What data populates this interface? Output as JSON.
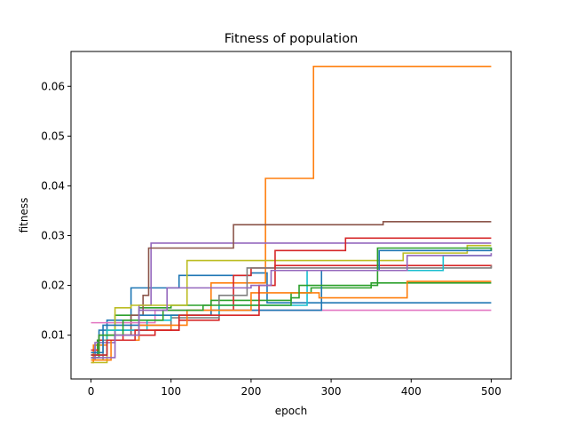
{
  "chart_data": {
    "type": "line",
    "step": true,
    "title": "Fitness of population",
    "xlabel": "epoch",
    "ylabel": "fitness",
    "xlim": [
      -25,
      525
    ],
    "ylim": [
      0.0012,
      0.067
    ],
    "xticks": [
      0,
      100,
      200,
      300,
      400,
      500
    ],
    "yticks": [
      0.01,
      0.02,
      0.03,
      0.04,
      0.05,
      0.06
    ],
    "ytick_labels": [
      "0.01",
      "0.02",
      "0.03",
      "0.04",
      "0.05",
      "0.06"
    ],
    "grid": false,
    "legend": false,
    "series": [
      {
        "color": "#1f77b4",
        "points": [
          [
            0,
            0.0055
          ],
          [
            5,
            0.008
          ],
          [
            10,
            0.011
          ],
          [
            20,
            0.013
          ],
          [
            50,
            0.0195
          ],
          [
            110,
            0.022
          ],
          [
            200,
            0.0225
          ],
          [
            220,
            0.0165
          ],
          [
            500,
            0.0165
          ]
        ]
      },
      {
        "color": "#ff7f0e",
        "points": [
          [
            0,
            0.0045
          ],
          [
            3,
            0.008
          ],
          [
            20,
            0.01
          ],
          [
            60,
            0.011
          ],
          [
            100,
            0.014
          ],
          [
            150,
            0.0205
          ],
          [
            218,
            0.0415
          ],
          [
            278,
            0.064
          ],
          [
            500,
            0.064
          ]
        ]
      },
      {
        "color": "#2ca02c",
        "points": [
          [
            0,
            0.006
          ],
          [
            8,
            0.009
          ],
          [
            30,
            0.014
          ],
          [
            60,
            0.0155
          ],
          [
            100,
            0.016
          ],
          [
            150,
            0.017
          ],
          [
            250,
            0.0185
          ],
          [
            275,
            0.0195
          ],
          [
            350,
            0.0205
          ],
          [
            500,
            0.0205
          ]
        ]
      },
      {
        "color": "#d62728",
        "points": [
          [
            0,
            0.007
          ],
          [
            10,
            0.009
          ],
          [
            40,
            0.01
          ],
          [
            80,
            0.011
          ],
          [
            110,
            0.013
          ],
          [
            160,
            0.015
          ],
          [
            178,
            0.022
          ],
          [
            200,
            0.0235
          ],
          [
            230,
            0.024
          ],
          [
            500,
            0.0235
          ]
        ]
      },
      {
        "color": "#9467bd",
        "points": [
          [
            0,
            0.005
          ],
          [
            5,
            0.0085
          ],
          [
            30,
            0.011
          ],
          [
            60,
            0.016
          ],
          [
            75,
            0.0285
          ],
          [
            180,
            0.0285
          ],
          [
            500,
            0.0285
          ]
        ]
      },
      {
        "color": "#8c564b",
        "points": [
          [
            0,
            0.0065
          ],
          [
            10,
            0.01
          ],
          [
            50,
            0.014
          ],
          [
            65,
            0.018
          ],
          [
            72,
            0.0275
          ],
          [
            178,
            0.0322
          ],
          [
            365,
            0.0328
          ],
          [
            500,
            0.0328
          ]
        ]
      },
      {
        "color": "#e377c2",
        "points": [
          [
            0,
            0.0125
          ],
          [
            80,
            0.015
          ],
          [
            500,
            0.015
          ]
        ]
      },
      {
        "color": "#7f7f7f",
        "points": [
          [
            0,
            0.005
          ],
          [
            15,
            0.009
          ],
          [
            60,
            0.012
          ],
          [
            100,
            0.0135
          ],
          [
            160,
            0.018
          ],
          [
            195,
            0.0235
          ],
          [
            500,
            0.024
          ]
        ]
      },
      {
        "color": "#bcbd22",
        "points": [
          [
            0,
            0.0045
          ],
          [
            20,
            0.011
          ],
          [
            30,
            0.0155
          ],
          [
            50,
            0.016
          ],
          [
            120,
            0.025
          ],
          [
            390,
            0.0265
          ],
          [
            470,
            0.028
          ],
          [
            500,
            0.028
          ]
        ]
      },
      {
        "color": "#17becf",
        "points": [
          [
            0,
            0.006
          ],
          [
            20,
            0.011
          ],
          [
            70,
            0.013
          ],
          [
            100,
            0.014
          ],
          [
            160,
            0.016
          ],
          [
            270,
            0.023
          ],
          [
            440,
            0.026
          ],
          [
            500,
            0.026
          ]
        ]
      },
      {
        "color": "#1f77b4",
        "points": [
          [
            0,
            0.0065
          ],
          [
            15,
            0.012
          ],
          [
            60,
            0.014
          ],
          [
            150,
            0.015
          ],
          [
            288,
            0.023
          ],
          [
            360,
            0.027
          ],
          [
            500,
            0.0275
          ]
        ]
      },
      {
        "color": "#ff7f0e",
        "points": [
          [
            0,
            0.005
          ],
          [
            25,
            0.009
          ],
          [
            60,
            0.012
          ],
          [
            120,
            0.015
          ],
          [
            200,
            0.0185
          ],
          [
            285,
            0.0175
          ],
          [
            395,
            0.0208
          ],
          [
            500,
            0.0208
          ]
        ]
      },
      {
        "color": "#2ca02c",
        "points": [
          [
            0,
            0.0055
          ],
          [
            10,
            0.01
          ],
          [
            40,
            0.013
          ],
          [
            90,
            0.015
          ],
          [
            140,
            0.016
          ],
          [
            250,
            0.0175
          ],
          [
            260,
            0.02
          ],
          [
            358,
            0.0275
          ],
          [
            500,
            0.027
          ]
        ]
      },
      {
        "color": "#d62728",
        "points": [
          [
            0,
            0.006
          ],
          [
            20,
            0.009
          ],
          [
            55,
            0.011
          ],
          [
            110,
            0.014
          ],
          [
            210,
            0.02
          ],
          [
            230,
            0.027
          ],
          [
            318,
            0.0295
          ],
          [
            500,
            0.0295
          ]
        ]
      },
      {
        "color": "#9467bd",
        "points": [
          [
            0,
            0.0055
          ],
          [
            30,
            0.01
          ],
          [
            60,
            0.015
          ],
          [
            95,
            0.0195
          ],
          [
            200,
            0.02
          ],
          [
            225,
            0.023
          ],
          [
            395,
            0.026
          ],
          [
            500,
            0.0265
          ]
        ]
      }
    ]
  }
}
